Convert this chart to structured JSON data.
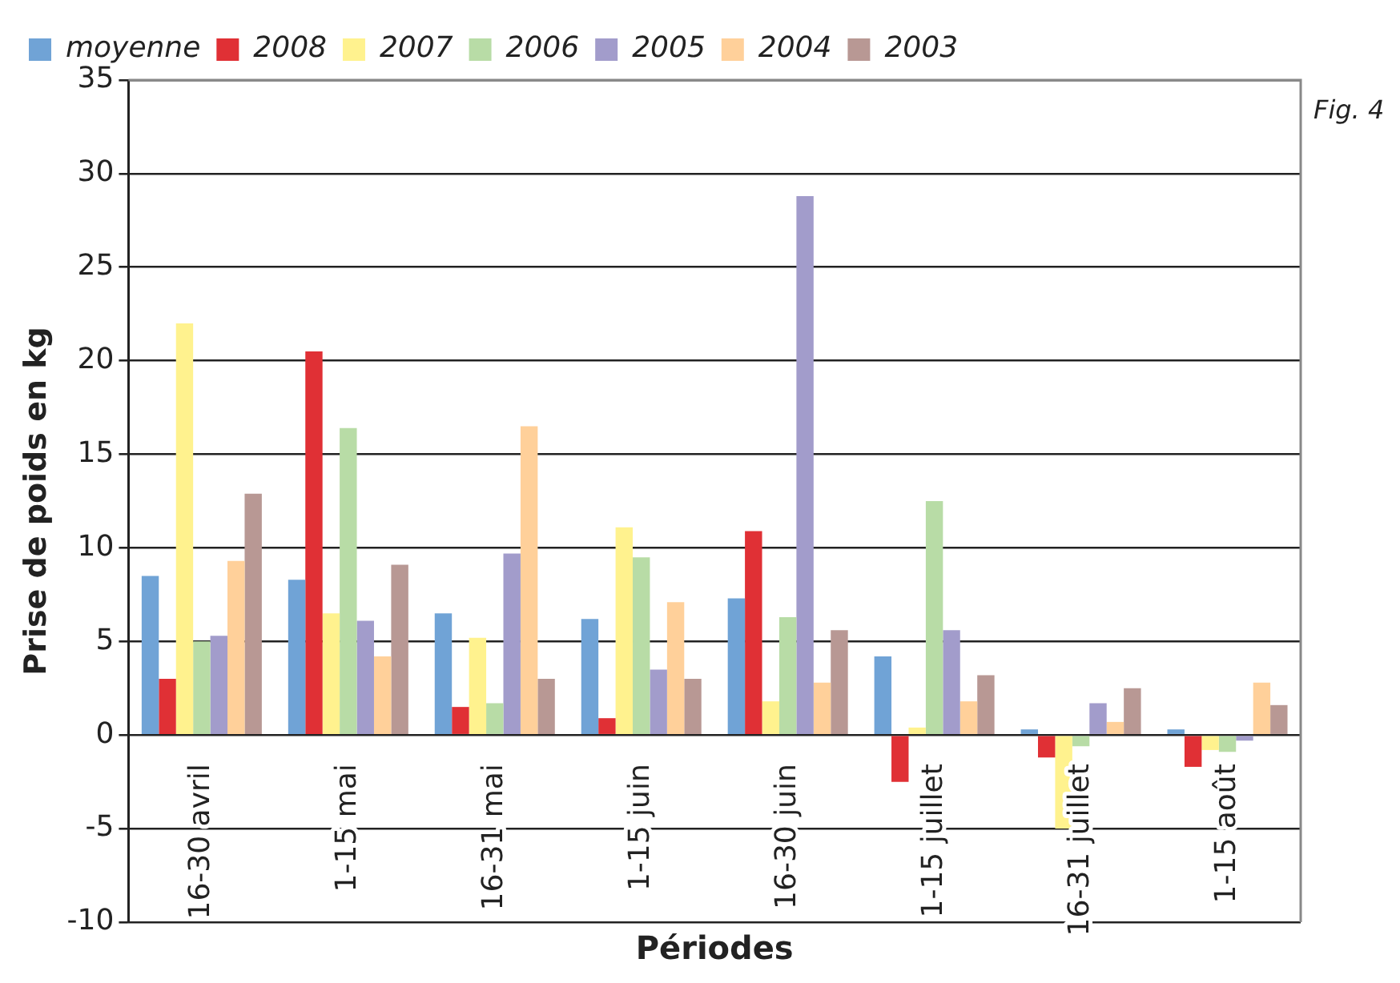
{
  "chart_data": {
    "type": "bar",
    "xlabel": "Périodes",
    "ylabel": "Prise de poids en kg",
    "annotations": [
      "Fig. 4"
    ],
    "categories": [
      "16-30 avril",
      "1-15 mai",
      "16-31 mai",
      "1-15 juin",
      "16-30 juin",
      "1-15 juillet",
      "16-31 juillet",
      "1-15 août"
    ],
    "series": [
      {
        "name": "moyenne",
        "color": "#70a3d6",
        "values": [
          8.5,
          8.3,
          6.5,
          6.2,
          7.3,
          4.2,
          0.3,
          0.3
        ]
      },
      {
        "name": "2008",
        "color": "#e03035",
        "values": [
          3.0,
          20.5,
          1.5,
          0.9,
          10.9,
          -2.5,
          -1.2,
          -1.7
        ]
      },
      {
        "name": "2007",
        "color": "#fff28e",
        "values": [
          22.0,
          6.5,
          5.2,
          11.1,
          1.8,
          0.4,
          -5.0,
          -0.8
        ]
      },
      {
        "name": "2006",
        "color": "#b8dca6",
        "values": [
          5.0,
          16.4,
          1.7,
          9.5,
          6.3,
          12.5,
          -0.6,
          -0.9
        ]
      },
      {
        "name": "2005",
        "color": "#a29ccb",
        "values": [
          5.3,
          6.1,
          9.7,
          3.5,
          28.8,
          5.6,
          1.7,
          -0.3
        ]
      },
      {
        "name": "2004",
        "color": "#ffd09a",
        "values": [
          9.3,
          4.2,
          16.5,
          7.1,
          2.8,
          1.8,
          0.7,
          2.8
        ]
      },
      {
        "name": "2003",
        "color": "#b89894",
        "values": [
          12.9,
          9.1,
          3.0,
          3.0,
          5.6,
          3.2,
          2.5,
          1.6
        ]
      }
    ],
    "ylim": [
      -10,
      35
    ],
    "yticks": [
      -10,
      -5,
      0,
      5,
      10,
      15,
      20,
      25,
      30,
      35
    ],
    "grid": "y",
    "legend": "top"
  }
}
